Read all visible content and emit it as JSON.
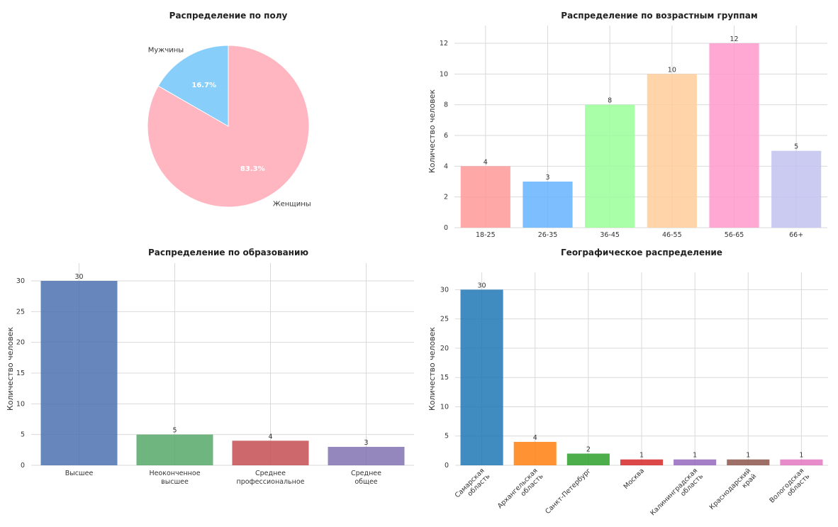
{
  "chart_data": [
    {
      "id": "gender",
      "type": "pie",
      "title": "Распределение по полу",
      "slices": [
        {
          "label": "Мужчины",
          "value": 16.7,
          "pct_label": "16.7%",
          "color": "#87cefa"
        },
        {
          "label": "Женщины",
          "value": 83.3,
          "pct_label": "83.3%",
          "color": "#ffb6c1"
        }
      ],
      "start_angle_deg": 90
    },
    {
      "id": "age",
      "type": "bar",
      "title": "Распределение по возрастным группам",
      "ylabel": "Количество человек",
      "categories": [
        "18-25",
        "26-35",
        "36-45",
        "46-55",
        "56-65",
        "66+"
      ],
      "values": [
        4,
        3,
        8,
        10,
        12,
        5
      ],
      "colors": [
        "#ff9999",
        "#66b3ff",
        "#99ff99",
        "#ffcc99",
        "#ff99cc",
        "#c2c2f0"
      ],
      "ylim": [
        0,
        12.6
      ],
      "yticks": [
        0,
        2,
        4,
        6,
        8,
        10,
        12
      ],
      "grid": true
    },
    {
      "id": "education",
      "type": "bar",
      "title": "Распределение по образованию",
      "ylabel": "Количество человек",
      "categories": [
        "Высшее",
        "Неоконченное высшее",
        "Среднее профессиональное",
        "Среднее общее"
      ],
      "values": [
        30,
        5,
        4,
        3
      ],
      "colors": [
        "#4c72b0",
        "#55a868",
        "#c44e52",
        "#8172b2"
      ],
      "ylim": [
        0,
        31.5
      ],
      "yticks": [
        0,
        5,
        10,
        15,
        20,
        25,
        30
      ],
      "grid": true
    },
    {
      "id": "geo",
      "type": "bar",
      "title": "Географическое распределение",
      "ylabel": "Количество человек",
      "categories": [
        "Самарская область",
        "Архангельская область",
        "Санкт-Петербург",
        "Москва",
        "Калининградская область",
        "Краснодарский край",
        "Вологодская область"
      ],
      "values": [
        30,
        4,
        2,
        1,
        1,
        1,
        1
      ],
      "colors": [
        "#1f77b4",
        "#ff7f0e",
        "#2ca02c",
        "#d62728",
        "#9467bd",
        "#8c564b",
        "#e377c2"
      ],
      "ylim": [
        0,
        31.5
      ],
      "yticks": [
        0,
        5,
        10,
        15,
        20,
        25,
        30
      ],
      "grid": true,
      "xtick_rotation": -45
    }
  ]
}
